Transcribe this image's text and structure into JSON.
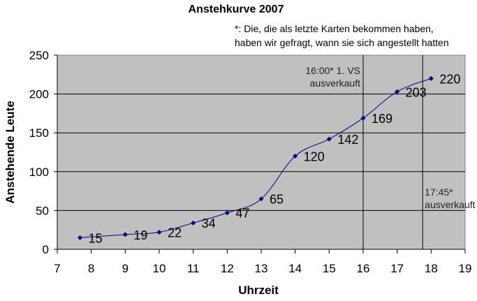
{
  "chart_data": {
    "type": "line",
    "title": "Anstehkurve 2007",
    "xlabel": "Uhrzeit",
    "ylabel": "Anstehende Leute",
    "xlim": [
      7,
      19
    ],
    "ylim": [
      0,
      250
    ],
    "x_ticks": [
      "7",
      "8",
      "9",
      "10",
      "11",
      "12",
      "13",
      "14",
      "15",
      "16",
      "17",
      "18",
      "19"
    ],
    "y_ticks": [
      "0",
      "50",
      "100",
      "150",
      "200",
      "250"
    ],
    "grid": "horizontal",
    "legend": "none",
    "plot_background": "#c0c0c0",
    "series_color": "#000080",
    "series": [
      {
        "x": [
          7.67,
          9.0,
          10.0,
          11.0,
          12.0,
          13.0,
          14.0,
          15.0,
          16.0,
          17.0,
          18.0
        ],
        "values": [
          15,
          19,
          22,
          34,
          47,
          65,
          120,
          142,
          169,
          203,
          220
        ],
        "labels": [
          "15",
          "19",
          "22",
          "34",
          "47",
          "65",
          "120",
          "142",
          "169",
          "203",
          "220"
        ]
      }
    ],
    "note": [
      "*: Die, die als letzte Karten bekommen haben,",
      "haben wir gefragt, wann sie sich angestellt hatten"
    ],
    "vlines": [
      {
        "x": 16.0,
        "text": [
          "16:00* 1. VS",
          "ausverkauft"
        ]
      },
      {
        "x": 17.75,
        "text": [
          "17:45*",
          "ausverkauft"
        ]
      }
    ]
  }
}
